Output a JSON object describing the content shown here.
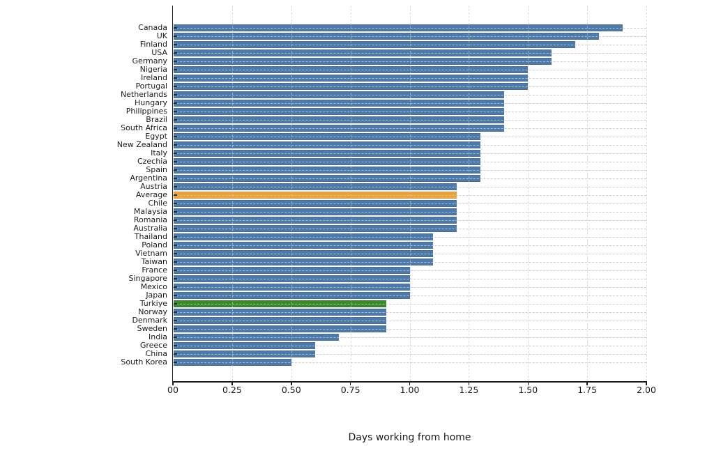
{
  "figure": {
    "background_color": "#ffffff",
    "spine_color": "#1a1a1a",
    "grid_color": "#c8c8c8",
    "text_color": "#1a1a1a"
  },
  "chart_data": {
    "type": "bar",
    "orientation": "horizontal",
    "title": "",
    "xlabel": "Days working from home",
    "ylabel": "",
    "xlim": [
      0,
      2.0
    ],
    "grid": "dashed, horizontal per category and vertical per x-tick",
    "legend": "none",
    "x_ticks": {
      "values": [
        0,
        0.25,
        0.5,
        0.75,
        1.0,
        1.25,
        1.5,
        1.75,
        2.0
      ],
      "labels": [
        "00",
        "0.25",
        "0.50",
        "0.75",
        "1.00",
        "1.25",
        "1.50",
        "1.75",
        "2.00"
      ]
    },
    "categories": [
      "Canada",
      "UK",
      "Finland",
      "USA",
      "Germany",
      "Nigeria",
      "Ireland",
      "Portugal",
      "Netherlands",
      "Hungary",
      "Philippines",
      "Brazil",
      "South Africa",
      "Egypt",
      "New Zealand",
      "Italy",
      "Czechia",
      "Spain",
      "Argentina",
      "Austria",
      "Average",
      "Chile",
      "Malaysia",
      "Romania",
      "Australia",
      "Thailand",
      "Poland",
      "Vietnam",
      "Taiwan",
      "France",
      "Singapore",
      "Mexico",
      "Japan",
      "Turkiye",
      "Norway",
      "Denmark",
      "Sweden",
      "India",
      "Greece",
      "China",
      "South Korea"
    ],
    "values": [
      1.9,
      1.8,
      1.7,
      1.6,
      1.6,
      1.5,
      1.5,
      1.5,
      1.4,
      1.4,
      1.4,
      1.4,
      1.4,
      1.3,
      1.3,
      1.3,
      1.3,
      1.3,
      1.3,
      1.2,
      1.2,
      1.2,
      1.2,
      1.2,
      1.2,
      1.1,
      1.1,
      1.1,
      1.1,
      1.0,
      1.0,
      1.0,
      1.0,
      0.9,
      0.9,
      0.9,
      0.9,
      0.7,
      0.6,
      0.6,
      0.5
    ],
    "bar_color_default": "#4d7aa8",
    "highlight_colors": {
      "Average": "#eca438",
      "Turkiye": "#388a2b"
    }
  }
}
